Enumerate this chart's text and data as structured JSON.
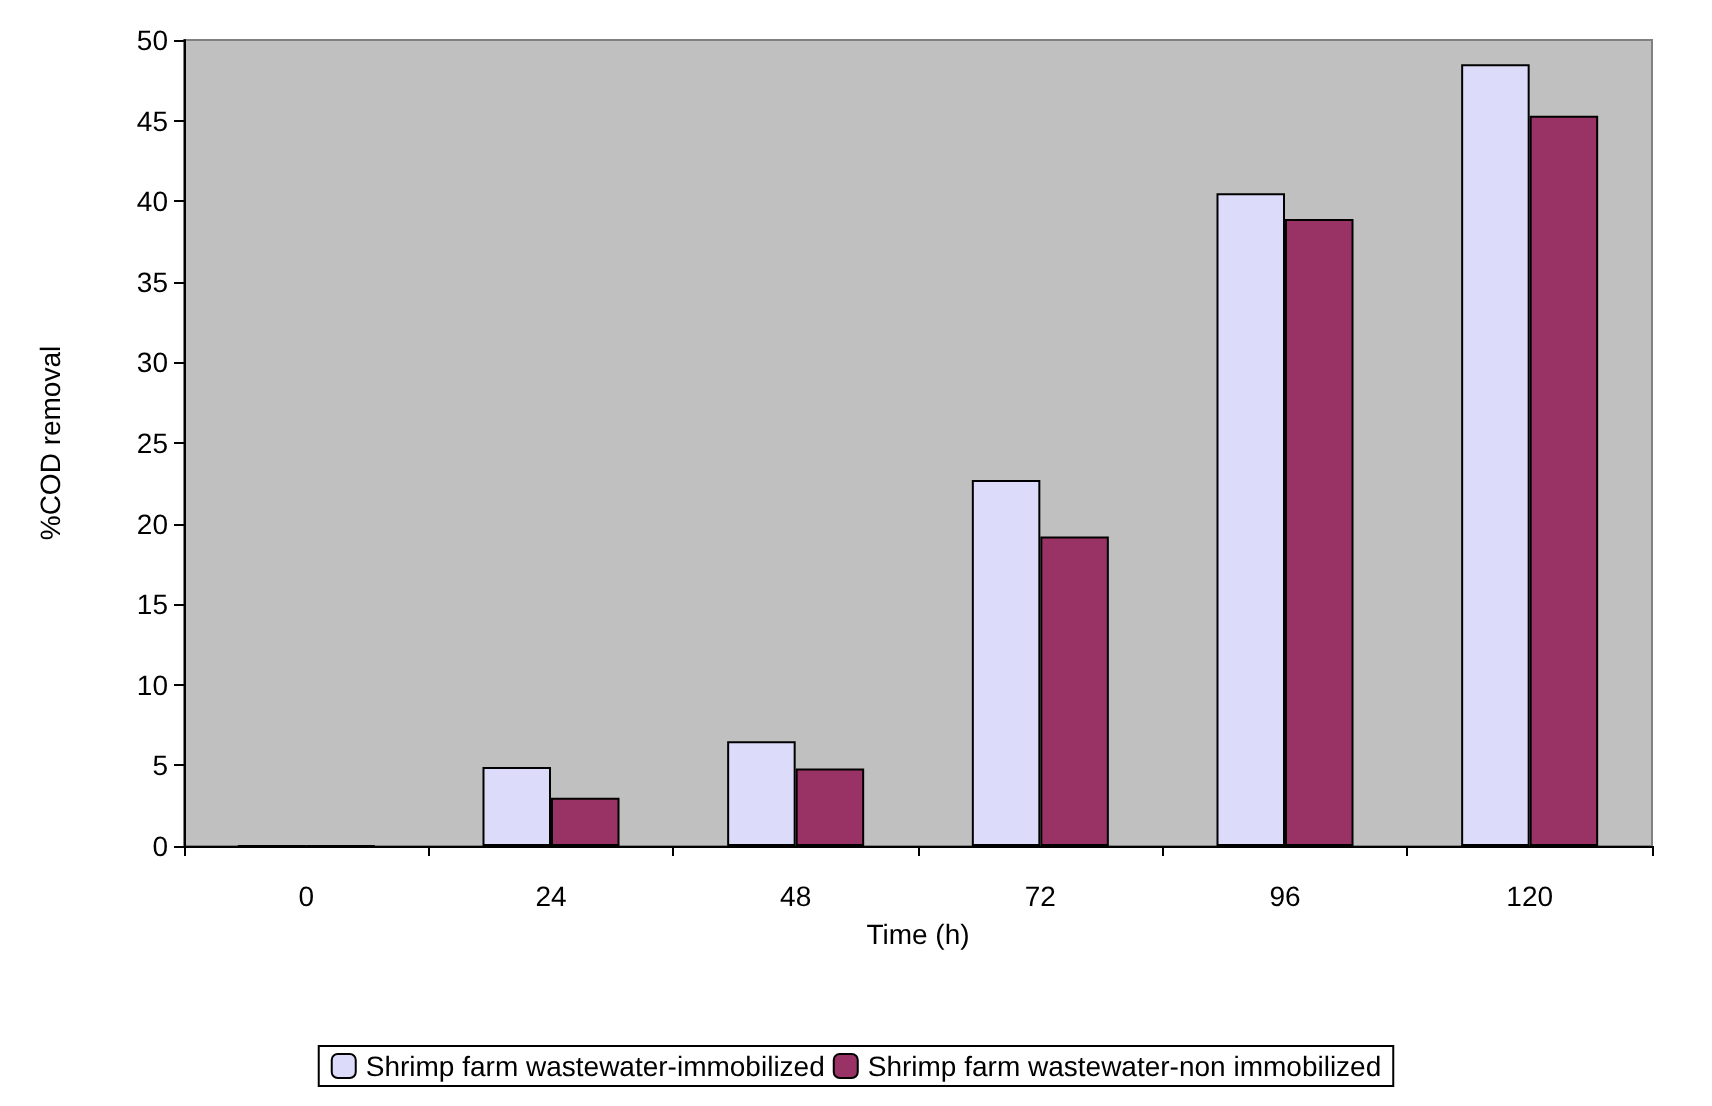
{
  "chart_data": {
    "type": "bar",
    "xlabel": "Time (h)",
    "ylabel": "%COD removal",
    "categories": [
      "0",
      "24",
      "48",
      "72",
      "96",
      "120"
    ],
    "series": [
      {
        "name": "Shrimp farm wastewater-immobilized",
        "color": "#dcdcfa",
        "values": [
          0,
          4.9,
          6.5,
          22.7,
          40.5,
          48.5
        ]
      },
      {
        "name": "Shrimp farm wastewater-non immobilized",
        "color": "#993366",
        "values": [
          0,
          3.0,
          4.8,
          19.2,
          38.9,
          45.3
        ]
      }
    ],
    "ylim": [
      0,
      50
    ],
    "yticks": [
      0,
      5,
      10,
      15,
      20,
      25,
      30,
      35,
      40,
      45,
      50
    ],
    "grid": false,
    "legend": "bottom"
  }
}
